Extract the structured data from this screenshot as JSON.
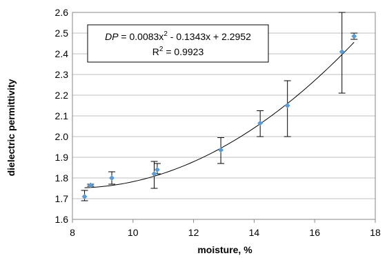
{
  "chart_data": {
    "type": "scatter",
    "xlabel": "moisture, %",
    "ylabel": "dielectric permittivity",
    "xlim": [
      8,
      18
    ],
    "ylim": [
      1.6,
      2.6
    ],
    "xticks": [
      8,
      10,
      12,
      14,
      16,
      18
    ],
    "yticks": [
      1.6,
      1.7,
      1.8,
      1.9,
      2.0,
      2.1,
      2.2,
      2.3,
      2.4,
      2.5,
      2.6
    ],
    "xtick_labels": [
      "8",
      "10",
      "12",
      "14",
      "16",
      "18"
    ],
    "ytick_labels": [
      "1.6",
      "1.7",
      "1.8",
      "1.9",
      "2.0",
      "2.1",
      "2.2",
      "2.3",
      "2.4",
      "2.5",
      "2.6"
    ],
    "grid": "horizontal",
    "points": [
      {
        "x": 8.4,
        "y": 1.71,
        "err_low": 1.69,
        "err_high": 1.74
      },
      {
        "x": 8.6,
        "y": 1.765,
        "err_low": 1.76,
        "err_high": 1.77
      },
      {
        "x": 9.3,
        "y": 1.8,
        "err_low": 1.77,
        "err_high": 1.83
      },
      {
        "x": 10.7,
        "y": 1.82,
        "err_low": 1.75,
        "err_high": 1.88
      },
      {
        "x": 10.8,
        "y": 1.84,
        "err_low": 1.82,
        "err_high": 1.87
      },
      {
        "x": 12.9,
        "y": 1.935,
        "err_low": 1.87,
        "err_high": 1.995
      },
      {
        "x": 14.2,
        "y": 2.065,
        "err_low": 2.0,
        "err_high": 2.125
      },
      {
        "x": 15.1,
        "y": 2.15,
        "err_low": 2.0,
        "err_high": 2.27
      },
      {
        "x": 16.9,
        "y": 2.41,
        "err_low": 2.21,
        "err_high": 2.6
      },
      {
        "x": 17.3,
        "y": 2.485,
        "err_low": 2.47,
        "err_high": 2.5
      }
    ],
    "trendline": {
      "type": "polynomial",
      "coefficients": [
        0.0083,
        -0.1343,
        2.2952
      ],
      "x_range": [
        8.4,
        17.3
      ]
    },
    "annotation": {
      "equation_var": "DP",
      "equation_rest": " = 0.0083x",
      "equation_sup": "2",
      "equation_tail": " - 0.1343x + 2.2952",
      "r2_prefix": "R",
      "r2_sup": "2",
      "r2_value": " = 0.9923"
    },
    "colors": {
      "marker": "#5b9bd5",
      "errorbar": "#000000",
      "trendline": "#000000",
      "grid": "#bfbfbf",
      "axis": "#868686"
    }
  }
}
